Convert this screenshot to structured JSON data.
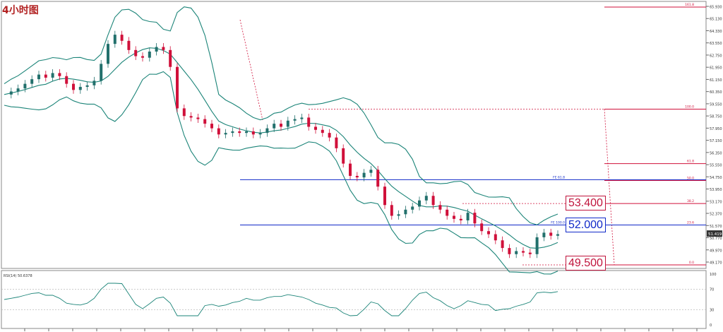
{
  "title": "4小时图",
  "price_scale_ticks": [
    "65.930",
    "65.130",
    "64.330",
    "63.550",
    "62.750",
    "61.950",
    "61.150",
    "60.350",
    "59.550",
    "58.750",
    "57.950",
    "57.150",
    "56.350",
    "55.550",
    "54.750",
    "53.950",
    "53.170",
    "52.370",
    "51.570",
    "50.770",
    "49.970",
    "49.170"
  ],
  "current_price_label": "51.419",
  "level_tags": [
    {
      "text": "53.400",
      "color": "#c0143c",
      "border": "#c0143c"
    },
    {
      "text": "52.000",
      "color": "#1029c8",
      "border": "#1029c8"
    },
    {
      "text": "49.500",
      "color": "#c0143c",
      "border": "#c0143c"
    }
  ],
  "fib_labels": [
    "161.8",
    "100.0",
    "61.8",
    "50.0",
    "38.2",
    "23.6",
    "0.0"
  ],
  "fe_labels": [
    "FE 61.8",
    "FE 100.0"
  ],
  "rsi_label": "RSI(14) 50.6378",
  "rsi_ticks": [
    "100",
    "70",
    "30",
    "0"
  ],
  "colors": {
    "bull": "#22706c",
    "bear": "#d0103a",
    "band": "#1b8478",
    "fib": "#d0103a",
    "fe": "#1029c8",
    "grid": "#bbbbbb"
  },
  "chart_data": {
    "type": "candlestick",
    "indicators": [
      "Bollinger Bands",
      "RSI(14)",
      "Fibonacci retracement",
      "Fibonacci expansion"
    ],
    "key_levels": [
      53.4,
      52.0,
      49.5
    ],
    "ylim": [
      49.17,
      66.2
    ],
    "rsi_ylim": [
      0,
      100
    ],
    "rsi_value": 50.6378,
    "close_path": [
      60.5,
      60.7,
      60.9,
      61.2,
      61.5,
      61.8,
      61.6,
      61.9,
      61.7,
      61.2,
      60.8,
      61.0,
      61.1,
      61.4,
      62.5,
      63.8,
      64.4,
      64.0,
      63.4,
      63.0,
      62.9,
      63.3,
      63.6,
      63.4,
      62.3,
      59.6,
      59.1,
      59.0,
      58.9,
      58.6,
      58.3,
      57.9,
      58.0,
      58.1,
      58.0,
      58.1,
      57.9,
      58.0,
      58.3,
      58.6,
      58.4,
      58.8,
      58.9,
      59.0,
      58.4,
      58.2,
      58.0,
      57.7,
      57.0,
      56.0,
      55.2,
      55.1,
      55.4,
      55.6,
      54.5,
      53.3,
      52.6,
      52.7,
      53.0,
      53.2,
      53.6,
      53.9,
      53.3,
      53.0,
      52.6,
      52.4,
      52.3,
      52.8,
      52.1,
      51.6,
      51.4,
      51.0,
      50.5,
      50.1,
      50.3,
      50.2,
      50.1,
      51.2,
      51.5,
      51.3,
      51.4
    ]
  }
}
